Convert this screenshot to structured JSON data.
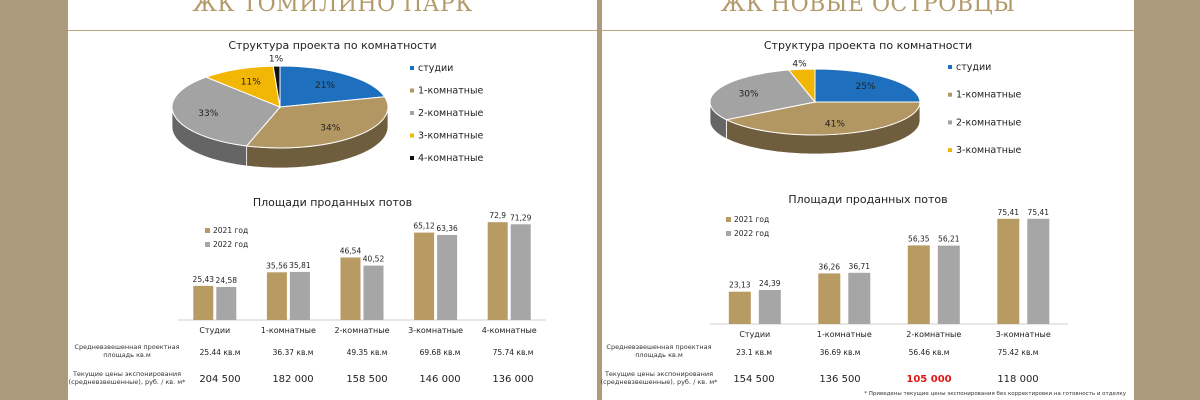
{
  "panels": [
    {
      "title": "ЖК ТОМИЛИНО ПАРК",
      "pie_title": "Структура проекта по комнатности",
      "bar_title": "Площади проданных потов",
      "area_label": "Средневзвешенная проектная площадь кв.м",
      "price_label": "Текущие цены экспонирования (средневзвешенные), руб. / кв. м*",
      "areas": [
        "25.44 кв.м",
        "36.37 кв.м",
        "49.35 кв.м",
        "69.68 кв.м",
        "75.74 кв.м"
      ],
      "prices": [
        "204 500",
        "182 000",
        "158 500",
        "146 000",
        "136 000"
      ],
      "price_highlight": [
        false,
        false,
        false,
        false,
        false
      ]
    },
    {
      "title": "ЖК НОВЫЕ ОСТРОВЦЫ",
      "pie_title": "Структура проекта по комнатности",
      "bar_title": "Площади проданных потов",
      "area_label": "Средневзвешенная проектная площадь кв.м",
      "price_label": "Текущие цены экспонирования (средневзвешенные), руб. / кв. м*",
      "areas": [
        "23.1 кв.м",
        "36.69 кв.м",
        "56.46 кв.м",
        "75.42 кв.м"
      ],
      "prices": [
        "154 500",
        "136 500",
        "105 000",
        "118 000"
      ],
      "price_highlight": [
        false,
        false,
        true,
        false
      ],
      "footnote": "* Приведены текущие цены экспонирования без корректировки на готовность и отделку"
    }
  ],
  "colors": {
    "studio": "#1f6fbf",
    "one_room": "#b39763",
    "two_room": "#a3a3a3",
    "three_room": "#f2b705",
    "four_room": "#111111",
    "bar_2021": "#b89b63",
    "bar_2022": "#a6a6a6",
    "background": "#ab9a7b",
    "title": "#b29a69",
    "highlight": "#e01818"
  },
  "chart_data": [
    {
      "type": "pie",
      "title": "Структура проекта по комнатности",
      "categories": [
        "студии",
        "1-комнатные",
        "2-комнатные",
        "3-комнатные",
        "4-комнатные"
      ],
      "values": [
        21,
        34,
        33,
        11,
        1
      ],
      "labels": [
        "21%",
        "34%",
        "33%",
        "11%",
        "1%"
      ],
      "legend_position": "right"
    },
    {
      "type": "bar",
      "title": "Площади проданных потов",
      "categories": [
        "Студии",
        "1-комнатные",
        "2-комнатные",
        "3-комнатные",
        "4-комнатные"
      ],
      "series": [
        {
          "name": "2021 год",
          "values": [
            25.43,
            35.56,
            46.54,
            65.12,
            72.9
          ],
          "labels": [
            "25,43",
            "35,56",
            "46,54",
            "65,12",
            "72,9"
          ]
        },
        {
          "name": "2022 год",
          "values": [
            24.58,
            35.81,
            40.52,
            63.36,
            71.29
          ],
          "labels": [
            "24,58",
            "35,81",
            "40,52",
            "63,36",
            "71,29"
          ]
        }
      ],
      "legend_position": "top-left"
    },
    {
      "type": "pie",
      "title": "Структура проекта по комнатности",
      "categories": [
        "студии",
        "1-комнатные",
        "2-комнатные",
        "3-комнатные"
      ],
      "values": [
        25,
        41,
        30,
        4
      ],
      "labels": [
        "25%",
        "41%",
        "30%",
        "4%"
      ],
      "legend_position": "right"
    },
    {
      "type": "bar",
      "title": "Площади проданных потов",
      "categories": [
        "Студии",
        "1-комнатные",
        "2-комнатные",
        "3-комнатные"
      ],
      "series": [
        {
          "name": "2021 год",
          "values": [
            23.13,
            36.26,
            56.35,
            75.41
          ],
          "labels": [
            "23,13",
            "36,26",
            "56,35",
            "75,41"
          ]
        },
        {
          "name": "2022 год",
          "values": [
            24.39,
            36.71,
            56.21,
            75.41
          ],
          "labels": [
            "24,39",
            "36,71",
            "56,21",
            "75,41"
          ]
        }
      ],
      "legend_position": "top-left"
    }
  ]
}
